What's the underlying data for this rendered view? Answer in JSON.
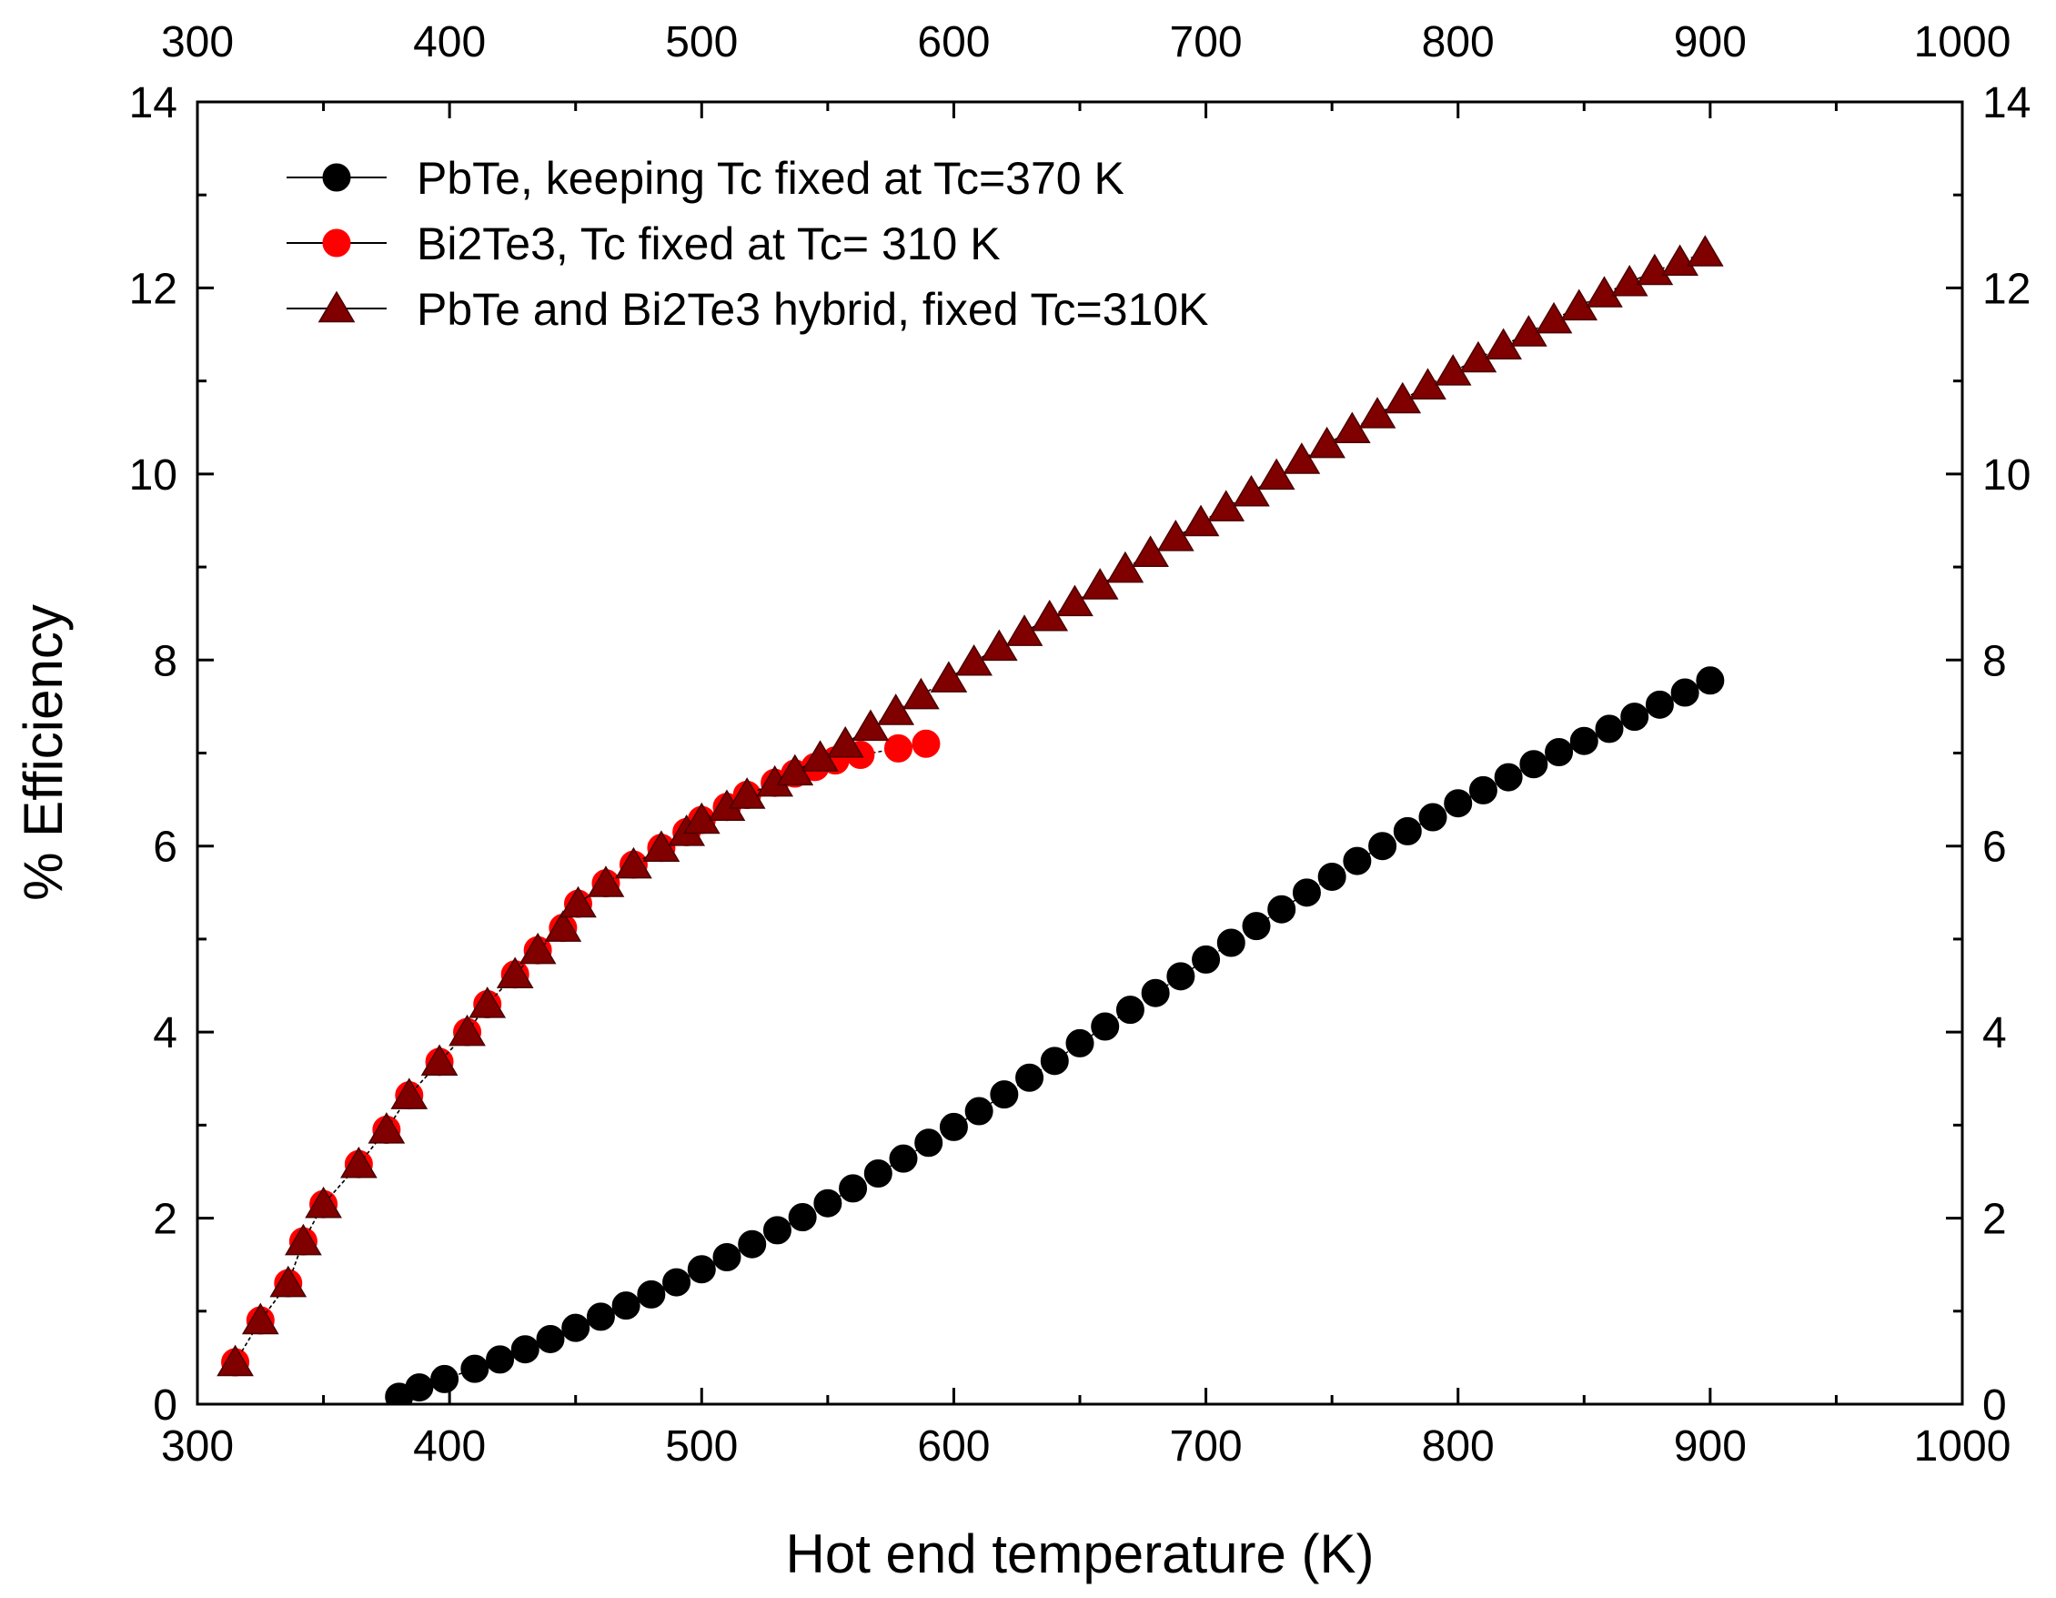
{
  "chart_data": {
    "type": "scatter",
    "title": "",
    "xlabel": "Hot end temperature (K)",
    "ylabel": "% Efficiency",
    "xlim": [
      300,
      1000
    ],
    "ylim": [
      0,
      14
    ],
    "x_ticks": [
      300,
      400,
      500,
      600,
      700,
      800,
      900,
      1000
    ],
    "y_ticks": [
      0,
      2,
      4,
      6,
      8,
      10,
      12,
      14
    ],
    "top_axis_ticks": [
      300,
      400,
      500,
      600,
      700,
      800,
      900,
      1000
    ],
    "right_axis_ticks": [
      0,
      2,
      4,
      6,
      8,
      10,
      12,
      14
    ],
    "legend_position": "top-left",
    "series": [
      {
        "name": "PbTe, keeping Tc fixed at Tc=370 K",
        "marker": "circle",
        "color": "#000000",
        "x": [
          380,
          388,
          398,
          410,
          420,
          430,
          440,
          450,
          460,
          470,
          480,
          490,
          500,
          510,
          520,
          530,
          540,
          550,
          560,
          570,
          580,
          590,
          600,
          610,
          620,
          630,
          640,
          650,
          660,
          670,
          680,
          690,
          700,
          710,
          720,
          730,
          740,
          750,
          760,
          770,
          780,
          790,
          800,
          810,
          820,
          830,
          840,
          850,
          860,
          870,
          880,
          890,
          900
        ],
        "y": [
          0.08,
          0.18,
          0.27,
          0.38,
          0.48,
          0.59,
          0.7,
          0.82,
          0.94,
          1.06,
          1.18,
          1.31,
          1.45,
          1.58,
          1.72,
          1.87,
          2.01,
          2.16,
          2.32,
          2.48,
          2.64,
          2.81,
          2.98,
          3.15,
          3.33,
          3.51,
          3.69,
          3.88,
          4.06,
          4.24,
          4.42,
          4.6,
          4.78,
          4.96,
          5.14,
          5.32,
          5.5,
          5.67,
          5.84,
          6.0,
          6.16,
          6.31,
          6.46,
          6.6,
          6.74,
          6.88,
          7.01,
          7.13,
          7.26,
          7.39,
          7.52,
          7.65,
          7.78
        ]
      },
      {
        "name": "Bi2Te3, Tc fixed at Tc= 310 K",
        "marker": "circle",
        "color": "#ff0000",
        "x": [
          315,
          325,
          336,
          342,
          350,
          364,
          375,
          384,
          396,
          407,
          415,
          426,
          435,
          445,
          451,
          462,
          473,
          484,
          494,
          500,
          510,
          518,
          529,
          537,
          545,
          553,
          563,
          578,
          589
        ],
        "y": [
          0.45,
          0.9,
          1.3,
          1.75,
          2.15,
          2.58,
          2.95,
          3.32,
          3.68,
          4.0,
          4.3,
          4.62,
          4.88,
          5.12,
          5.38,
          5.6,
          5.8,
          5.98,
          6.15,
          6.28,
          6.42,
          6.55,
          6.68,
          6.78,
          6.85,
          6.92,
          6.98,
          7.05,
          7.1
        ]
      },
      {
        "name": "PbTe and Bi2Te3 hybrid, fixed Tc=310K",
        "marker": "triangle",
        "color": "#800000",
        "x": [
          315,
          325,
          336,
          342,
          350,
          364,
          375,
          384,
          396,
          407,
          415,
          426,
          435,
          445,
          451,
          462,
          473,
          484,
          494,
          500,
          510,
          518,
          529,
          537,
          547,
          557,
          567,
          577,
          587,
          598,
          608,
          618,
          628,
          638,
          648,
          658,
          668,
          678,
          688,
          698,
          708,
          718,
          728,
          738,
          748,
          758,
          768,
          778,
          788,
          798,
          808,
          818,
          828,
          838,
          848,
          858,
          868,
          878,
          888,
          898
        ],
        "y": [
          0.45,
          0.9,
          1.3,
          1.75,
          2.15,
          2.58,
          2.95,
          3.32,
          3.68,
          4.0,
          4.3,
          4.62,
          4.88,
          5.12,
          5.38,
          5.6,
          5.8,
          5.98,
          6.15,
          6.28,
          6.42,
          6.55,
          6.68,
          6.8,
          6.95,
          7.1,
          7.28,
          7.45,
          7.62,
          7.8,
          7.98,
          8.14,
          8.3,
          8.46,
          8.62,
          8.8,
          8.98,
          9.15,
          9.32,
          9.48,
          9.64,
          9.8,
          9.98,
          10.15,
          10.32,
          10.48,
          10.64,
          10.8,
          10.95,
          11.1,
          11.24,
          11.38,
          11.52,
          11.66,
          11.8,
          11.94,
          12.06,
          12.18,
          12.28,
          12.38
        ]
      }
    ]
  }
}
